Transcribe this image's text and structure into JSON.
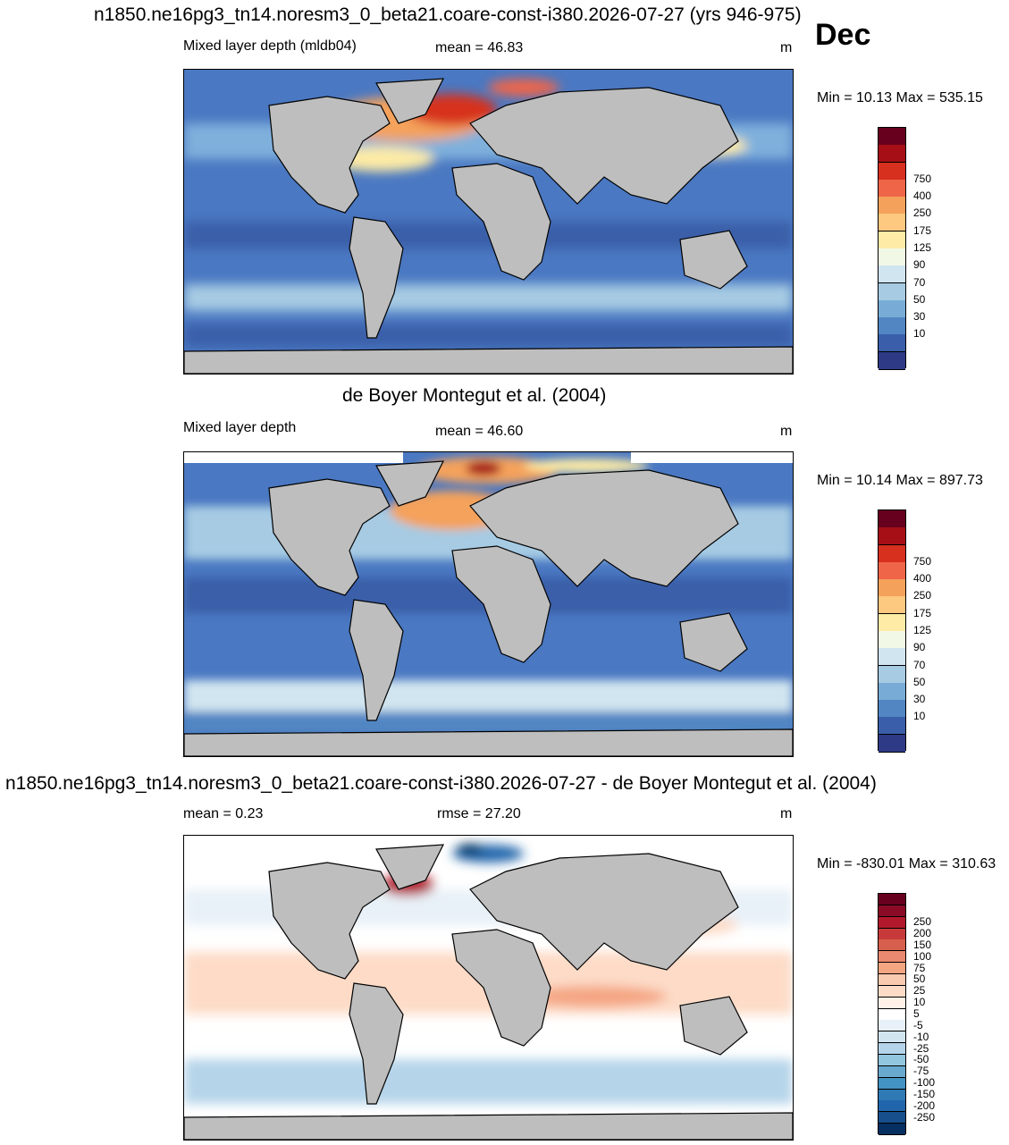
{
  "header": {
    "title": "n1850.ne16pg3_tn14.noresm3_0_beta21.coare-const-i380.2026-07-27 (yrs 946-975)",
    "month": "Dec"
  },
  "panels": [
    {
      "id": "model",
      "left_label": "Mixed layer depth (mldb04)",
      "center_label": "mean =  46.83",
      "units": "m",
      "minmax": "Min =  10.13 Max = 535.15",
      "colorbar": {
        "labels": [
          "750",
          "400",
          "250",
          "175",
          "125",
          "90",
          "70",
          "50",
          "30",
          "10"
        ],
        "colors": [
          "#67001f",
          "#a50f15",
          "#d7301f",
          "#ef6548",
          "#f4a25b",
          "#fdc87f",
          "#fdeba6",
          "#f2f8e6",
          "#d1e5f0",
          "#a6cbe3",
          "#78acd6",
          "#5186c3",
          "#3a5ea9",
          "#2f3a86"
        ]
      }
    },
    {
      "id": "obs",
      "section_title": "de Boyer Montegut et al. (2004)",
      "left_label": "Mixed layer depth",
      "center_label": "mean =  46.60",
      "units": "m",
      "minmax": "Min =  10.14 Max = 897.73",
      "colorbar": {
        "labels": [
          "750",
          "400",
          "250",
          "175",
          "125",
          "90",
          "70",
          "50",
          "30",
          "10"
        ],
        "colors": [
          "#67001f",
          "#a50f15",
          "#d7301f",
          "#ef6548",
          "#f4a25b",
          "#fdc87f",
          "#fdeba6",
          "#f2f8e6",
          "#d1e5f0",
          "#a6cbe3",
          "#78acd6",
          "#5186c3",
          "#3a5ea9",
          "#2f3a86"
        ]
      }
    },
    {
      "id": "diff",
      "section_title": "n1850.ne16pg3_tn14.noresm3_0_beta21.coare-const-i380.2026-07-27 - de Boyer Montegut et al. (2004)",
      "left_label": "mean =   0.23",
      "center_label": "rmse =  27.20",
      "units": "m",
      "minmax": "Min = -830.01 Max = 310.63",
      "colorbar": {
        "labels": [
          "250",
          "200",
          "150",
          "100",
          "75",
          "50",
          "25",
          "10",
          "5",
          "-5",
          "-10",
          "-25",
          "-50",
          "-75",
          "-100",
          "-150",
          "-200",
          "-250"
        ],
        "colors": [
          "#67001f",
          "#8b0a26",
          "#b2182b",
          "#c83a3a",
          "#d6604d",
          "#e8896f",
          "#f4a582",
          "#f9c9b0",
          "#fddbc7",
          "#fff0e8",
          "#ffffff",
          "#e8f1f8",
          "#d1e5f0",
          "#b5d4e9",
          "#92c5de",
          "#6aa9cf",
          "#4393c3",
          "#2f79b5",
          "#2166ac",
          "#174f8c",
          "#053061"
        ]
      }
    }
  ]
}
